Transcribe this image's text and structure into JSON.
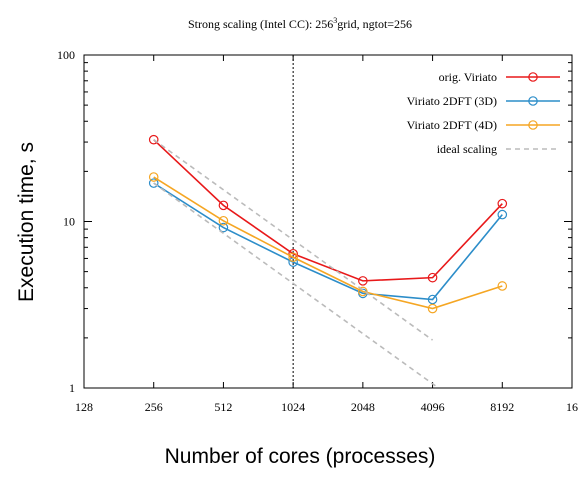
{
  "chart_data": {
    "type": "line",
    "title_prefix": "Strong scaling (Intel CC): 256",
    "title_sup": "3",
    "title_suffix": "grid, ngtot=256",
    "xlabel": "Number of cores (processes)",
    "ylabel": "Execution time, s",
    "xscale": "log2",
    "yscale": "log10",
    "xlim": [
      128,
      16384
    ],
    "ylim": [
      1,
      100
    ],
    "x_tick_labels": [
      "128",
      "256",
      "512",
      "1024",
      "2048",
      "4096",
      "8192",
      "16"
    ],
    "y_tick_labels": [
      "1",
      "10",
      "100"
    ],
    "vertical_reference_x": 1024,
    "legend_position": "top-right",
    "series": [
      {
        "name": "orig. Viriato",
        "color": "#e8191a",
        "style": "solid",
        "marker": "circle",
        "x": [
          256,
          512,
          1024,
          2048,
          4096,
          8192
        ],
        "y": [
          31,
          12.5,
          6.4,
          4.4,
          4.6,
          12.8
        ]
      },
      {
        "name": "Viriato 2DFT (3D)",
        "color": "#2c8dc9",
        "style": "solid",
        "marker": "circle",
        "x": [
          256,
          512,
          1024,
          2048,
          4096,
          8192
        ],
        "y": [
          17,
          9.2,
          5.7,
          3.7,
          3.4,
          11
        ]
      },
      {
        "name": "Viriato 2DFT (4D)",
        "color": "#f5a623",
        "style": "solid",
        "marker": "circle",
        "x": [
          256,
          512,
          1024,
          2048,
          4096,
          8192
        ],
        "y": [
          18.5,
          10.1,
          6.1,
          3.8,
          3.0,
          4.1
        ]
      },
      {
        "name": "ideal scaling",
        "color": "#bbbbbb",
        "style": "dashed",
        "marker": "none",
        "lines": [
          {
            "x": [
              256,
              4096
            ],
            "y": [
              31,
              1.94
            ]
          },
          {
            "x": [
              256,
              8192
            ],
            "y": [
              17,
              0.53
            ]
          }
        ]
      }
    ]
  }
}
